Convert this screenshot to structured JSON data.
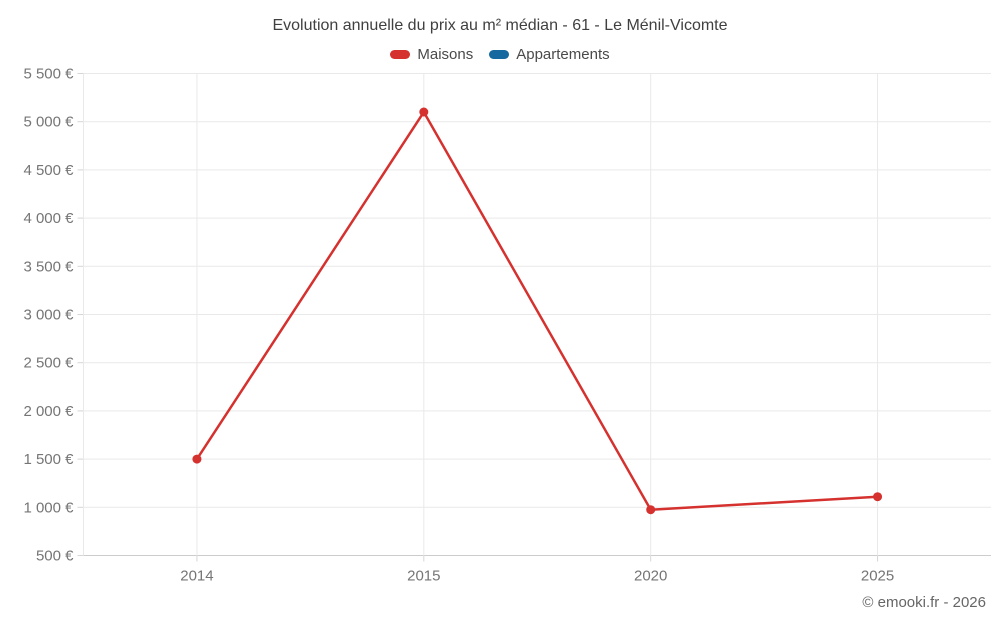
{
  "page": {
    "footer": "© emooki.fr - 2026"
  },
  "legend": {
    "items": [
      {
        "label": "Maisons",
        "color": "#d5312e"
      },
      {
        "label": "Appartements",
        "color": "#15699e"
      }
    ]
  },
  "chart_data": {
    "type": "line",
    "title": "Evolution annuelle du prix au m² médian - 61 - Le Ménil-Vicomte",
    "categories": [
      "2014",
      "2015",
      "2020",
      "2025"
    ],
    "series": [
      {
        "name": "Maisons",
        "color": "#d5312e",
        "values": [
          1500,
          5100,
          975,
          1110
        ]
      },
      {
        "name": "Appartements",
        "color": "#15699e",
        "values": []
      }
    ],
    "xlabel": "",
    "ylabel": "",
    "ylim": [
      500,
      5500
    ],
    "ytick_step": 500,
    "ytick_suffix": " €",
    "grid": true,
    "legend_position": "top"
  },
  "colors": {
    "gridline": "#e9e9e9",
    "axis_line": "#cccccc",
    "tick": "#d6d6d6",
    "axis_label": "#757575",
    "title_text": "#404040",
    "footer_text": "#666666"
  }
}
